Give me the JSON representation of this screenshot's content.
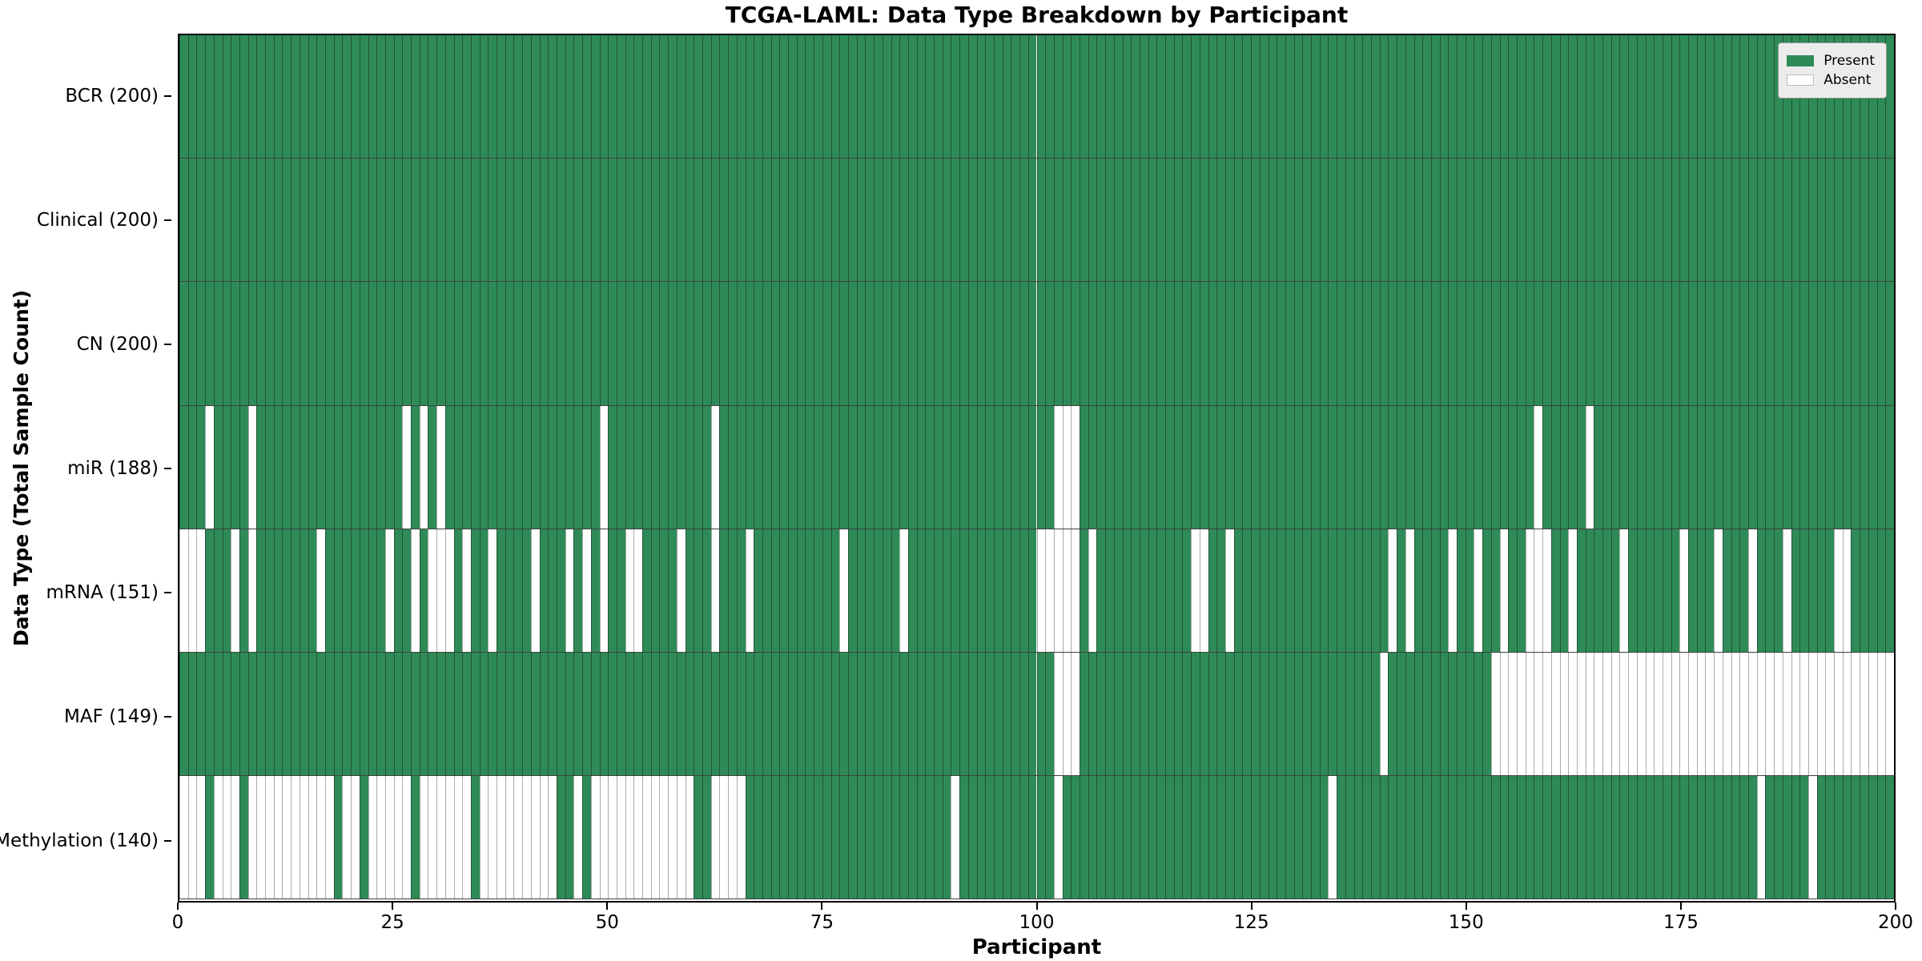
{
  "title": "TCGA-LAML: Data Type Breakdown by Participant",
  "x_axis_label": "Participant",
  "y_axis_label": "Data Type (Total Sample Count)",
  "legend": {
    "present_label": "Present",
    "absent_label": "Absent"
  },
  "colors": {
    "present": "#2e8b57",
    "absent": "#ffffff",
    "row_separator": "#000000",
    "legend_bg": "#ececec"
  },
  "x_ticks": [
    0,
    25,
    50,
    75,
    100,
    125,
    150,
    175,
    200
  ],
  "n_participants": 200,
  "chart_data": {
    "type": "heatmap",
    "title": "TCGA-LAML: Data Type Breakdown by Participant",
    "xlabel": "Participant",
    "ylabel": "Data Type (Total Sample Count)",
    "x_range": [
      0,
      200
    ],
    "grid": true,
    "legend_position": "upper right",
    "value_encoding": {
      "present": "#2e8b57",
      "absent": "#ffffff"
    },
    "rows": [
      {
        "label": "BCR (200)",
        "data_type": "BCR",
        "total_sample_count": 200,
        "absent_participants": []
      },
      {
        "label": "Clinical (200)",
        "data_type": "Clinical",
        "total_sample_count": 200,
        "absent_participants": []
      },
      {
        "label": "CN (200)",
        "data_type": "CN",
        "total_sample_count": 200,
        "absent_participants": []
      },
      {
        "label": "miR (188)",
        "data_type": "miR",
        "total_sample_count": 188,
        "absent_participants": [
          3,
          8,
          26,
          28,
          30,
          49,
          62,
          102,
          103,
          104,
          158,
          164
        ]
      },
      {
        "label": "mRNA (151)",
        "data_type": "mRNA",
        "total_sample_count": 151,
        "absent_participants": [
          0,
          1,
          2,
          6,
          8,
          16,
          24,
          27,
          29,
          30,
          31,
          33,
          36,
          41,
          45,
          47,
          49,
          52,
          53,
          58,
          62,
          66,
          77,
          84,
          100,
          101,
          102,
          103,
          104,
          106,
          118,
          119,
          122,
          141,
          143,
          148,
          151,
          154,
          157,
          158,
          159,
          162,
          168,
          175,
          179,
          183,
          187,
          193,
          194
        ]
      },
      {
        "label": "MAF (149)",
        "data_type": "MAF",
        "total_sample_count": 149,
        "absent_participants": [
          102,
          103,
          104,
          140,
          153,
          154,
          155,
          156,
          157,
          158,
          159,
          160,
          161,
          162,
          163,
          164,
          165,
          166,
          167,
          168,
          169,
          170,
          171,
          172,
          173,
          174,
          175,
          176,
          177,
          178,
          179,
          180,
          181,
          182,
          183,
          184,
          185,
          186,
          187,
          188,
          189,
          190,
          191,
          192,
          193,
          194,
          195,
          196,
          197,
          198,
          199
        ]
      },
      {
        "label": "Methylation (140)",
        "data_type": "Methylation",
        "total_sample_count": 140,
        "absent_participants": [
          0,
          1,
          2,
          4,
          5,
          6,
          8,
          9,
          10,
          11,
          12,
          13,
          14,
          15,
          16,
          17,
          19,
          20,
          22,
          23,
          24,
          25,
          26,
          28,
          29,
          30,
          31,
          32,
          33,
          35,
          36,
          37,
          38,
          39,
          40,
          41,
          42,
          43,
          46,
          48,
          49,
          50,
          51,
          52,
          53,
          54,
          55,
          56,
          57,
          58,
          59,
          62,
          63,
          64,
          65,
          90,
          102,
          134,
          184,
          190
        ]
      }
    ]
  }
}
